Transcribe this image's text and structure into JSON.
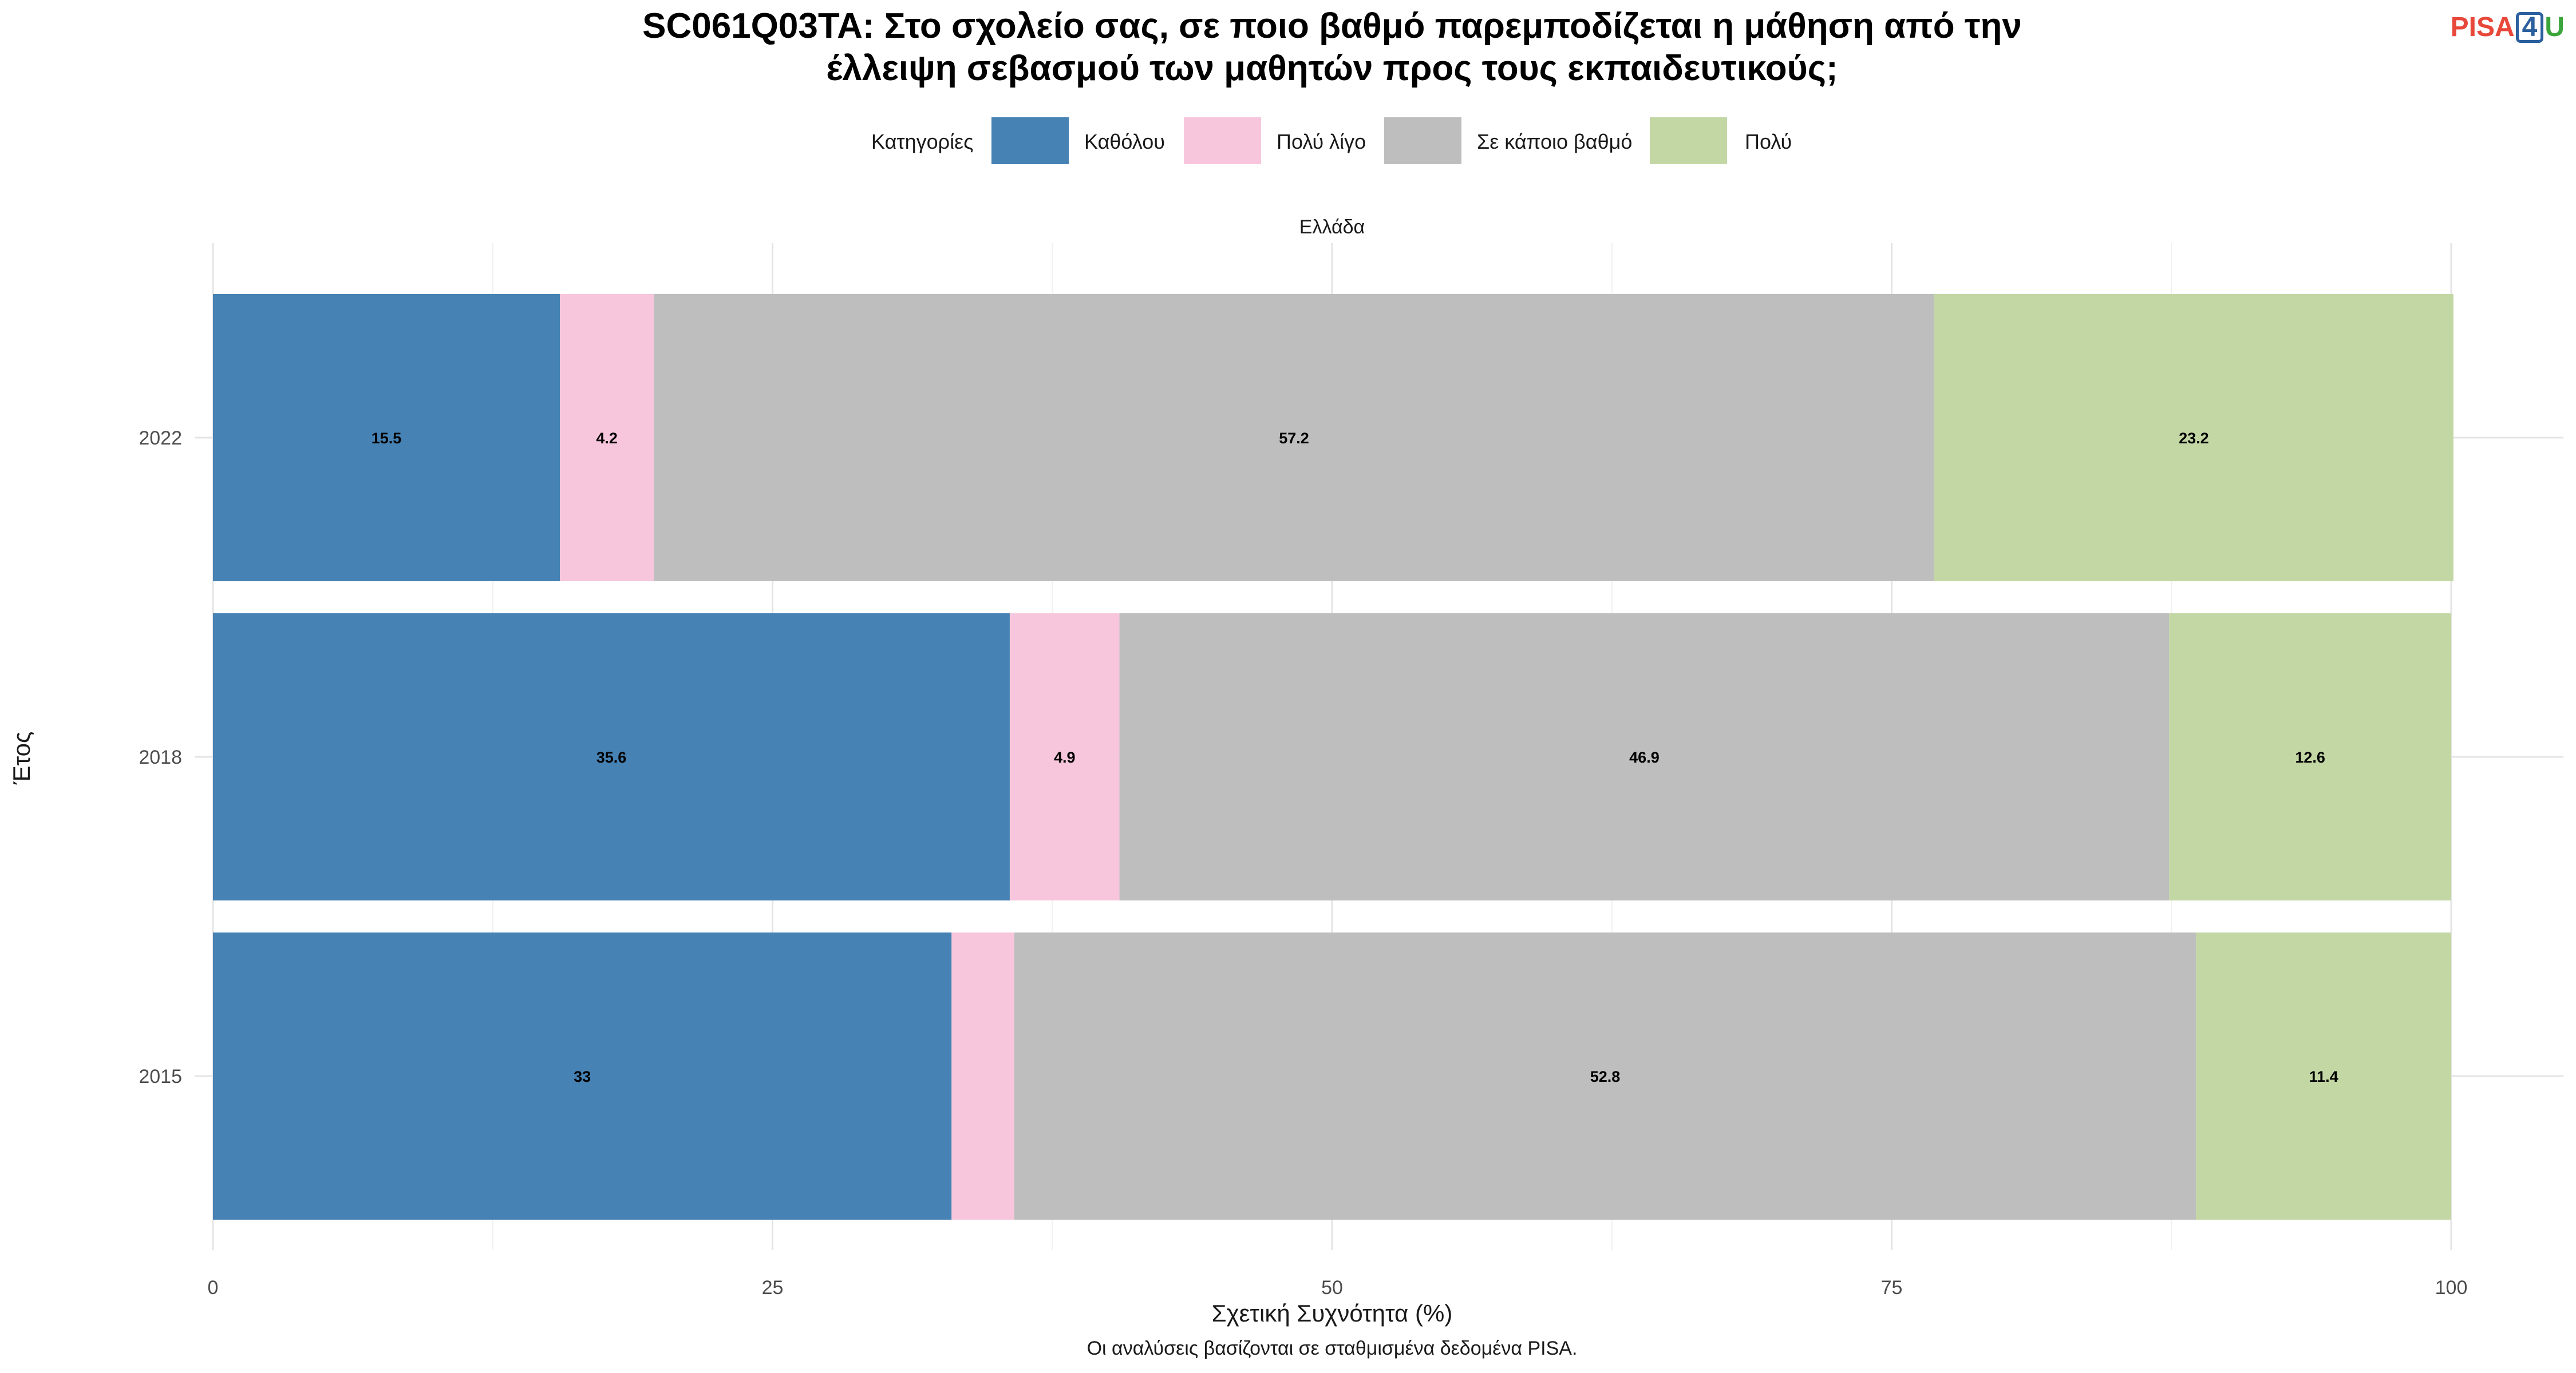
{
  "chart_data": {
    "type": "bar",
    "orientation": "horizontal",
    "stacked": true,
    "title_lines": [
      "SC061Q03TA: Στο σχολείο σας, σε ποιο βαθμό παρεμποδίζεται η μάθηση από την",
      "έλλειψη σεβασμού των μαθητών προς τους εκπαιδευτικούς;"
    ],
    "legend_title": "Κατηγορίες",
    "legend_position": "top",
    "facet_label": "Ελλάδα",
    "xlabel": "Σχετική Συχνότητα (%)",
    "ylabel": "Έτος",
    "caption": "Οι αναλύσεις βασίζονται σε σταθμισμένα δεδομένα PISA.",
    "xlim": [
      0,
      100
    ],
    "xticks": [
      0,
      25,
      50,
      75,
      100
    ],
    "grid": true,
    "categories": [
      "2022",
      "2018",
      "2015"
    ],
    "series": [
      {
        "name": "Καθόλου",
        "color": "#4682b4",
        "values": [
          15.5,
          35.6,
          33
        ],
        "labels": [
          "15.5",
          "35.6",
          "33"
        ]
      },
      {
        "name": "Πολύ λίγο",
        "color": "#f7c6dc",
        "values": [
          4.2,
          4.9,
          2.8
        ],
        "labels": [
          "4.2",
          "4.9",
          ""
        ]
      },
      {
        "name": "Σε κάποιο βαθμό",
        "color": "#bebebe",
        "values": [
          57.2,
          46.9,
          52.8
        ],
        "labels": [
          "57.2",
          "46.9",
          "52.8"
        ]
      },
      {
        "name": "Πολύ",
        "color": "#c3d7a4",
        "values": [
          23.2,
          12.6,
          11.4
        ],
        "labels": [
          "23.2",
          "12.6",
          "11.4"
        ]
      }
    ]
  },
  "logo": {
    "pisa": "PISA",
    "four": "4",
    "u": "U"
  }
}
